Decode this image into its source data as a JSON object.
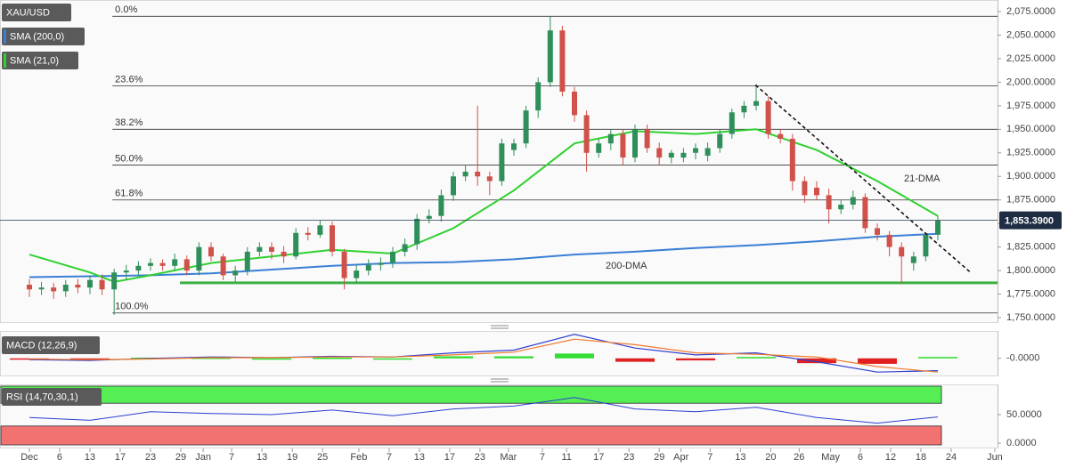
{
  "chart_data": [
    {
      "type": "candlestick",
      "symbol": "XAU/USD",
      "xlim": [
        -4.85,
        159.85
      ],
      "xticks": [
        {
          "value": 0,
          "label": "Dec"
        },
        {
          "value": 5,
          "label": "6"
        },
        {
          "value": 10,
          "label": "13"
        },
        {
          "value": 15,
          "label": "17"
        },
        {
          "value": 20,
          "label": "23"
        },
        {
          "value": 25,
          "label": "29"
        },
        {
          "value": 28.7,
          "label": "Jan"
        },
        {
          "value": 33.4,
          "label": "7"
        },
        {
          "value": 38.4,
          "label": "13"
        },
        {
          "value": 43.4,
          "label": "19"
        },
        {
          "value": 48.4,
          "label": "25"
        },
        {
          "value": 54.4,
          "label": "Feb"
        },
        {
          "value": 59.4,
          "label": "7"
        },
        {
          "value": 64.4,
          "label": "13"
        },
        {
          "value": 69.4,
          "label": "17"
        },
        {
          "value": 74.4,
          "label": "23"
        },
        {
          "value": 79.1,
          "label": "Mar"
        },
        {
          "value": 84.7,
          "label": "7"
        },
        {
          "value": 88.7,
          "label": "11"
        },
        {
          "value": 94,
          "label": "17"
        },
        {
          "value": 99,
          "label": "23"
        },
        {
          "value": 104,
          "label": "29"
        },
        {
          "value": 107.6,
          "label": "Apr"
        },
        {
          "value": 112.4,
          "label": "7"
        },
        {
          "value": 117.4,
          "label": "13"
        },
        {
          "value": 122.4,
          "label": "20"
        },
        {
          "value": 127.1,
          "label": "26"
        },
        {
          "value": 132.3,
          "label": "May"
        },
        {
          "value": 137.2,
          "label": "6"
        },
        {
          "value": 142.2,
          "label": "12"
        },
        {
          "value": 147.2,
          "label": "18"
        },
        {
          "value": 152.2,
          "label": "24"
        },
        {
          "value": 159.4,
          "label": "Jun"
        }
      ],
      "ylim": [
        1745.3,
        2087.3
      ],
      "yticks": [
        {
          "value": 2075,
          "label": "2,075.0000"
        },
        {
          "value": 2050,
          "label": "2,050.0000"
        },
        {
          "value": 2025,
          "label": "2,025.0000"
        },
        {
          "value": 2000,
          "label": "2,000.0000"
        },
        {
          "value": 1975,
          "label": "1,975.0000"
        },
        {
          "value": 1950,
          "label": "1,950.0000"
        },
        {
          "value": 1925,
          "label": "1,925.0000"
        },
        {
          "value": 1900,
          "label": "1,900.0000"
        },
        {
          "value": 1875,
          "label": "1,875.0000"
        },
        {
          "value": 1850,
          "label": "1,850.0000"
        },
        {
          "value": 1825,
          "label": "1,825.0000"
        },
        {
          "value": 1800,
          "label": "1,800.0000"
        },
        {
          "value": 1775,
          "label": "1,775.0000"
        },
        {
          "value": 1750,
          "label": "1,750.0000"
        }
      ],
      "candles": {
        "up_color": "#2f8f5b",
        "down_color": "#d0514a",
        "x": [
          0,
          2,
          4,
          6,
          8,
          10,
          12,
          14,
          16,
          18,
          20,
          22,
          24,
          26,
          28,
          30,
          32,
          34,
          36,
          38,
          40,
          42,
          44,
          46,
          48,
          50,
          52,
          54,
          56,
          58,
          60,
          62,
          64,
          66,
          68,
          70,
          72,
          74,
          76,
          78,
          80,
          82,
          84,
          86,
          88,
          90,
          92,
          94,
          96,
          98,
          100,
          102,
          104,
          106,
          108,
          110,
          112,
          114,
          116,
          118,
          120,
          122,
          124,
          126,
          128,
          130,
          132,
          134,
          136,
          138,
          140,
          142,
          144,
          146,
          148,
          150
        ],
        "open": [
          1785,
          1780,
          1782,
          1778,
          1785,
          1782,
          1790,
          1780,
          1798,
          1800,
          1805,
          1808,
          1805,
          1812,
          1800,
          1825,
          1815,
          1795,
          1800,
          1820,
          1825,
          1820,
          1815,
          1840,
          1838,
          1848,
          1820,
          1792,
          1800,
          1806,
          1808,
          1820,
          1828,
          1855,
          1858,
          1880,
          1900,
          1905,
          1900,
          1895,
          1928,
          1935,
          1970,
          2000,
          2055,
          1990,
          1965,
          1925,
          1935,
          1945,
          1920,
          1950,
          1930,
          1920,
          1920,
          1925,
          1922,
          1930,
          1945,
          1968,
          1975,
          1980,
          1945,
          1940,
          1895,
          1888,
          1880,
          1865,
          1870,
          1878,
          1845,
          1838,
          1825,
          1808,
          1815,
          1838
        ],
        "high": [
          1791,
          1788,
          1787,
          1790,
          1791,
          1795,
          1796,
          1802,
          1806,
          1810,
          1813,
          1812,
          1818,
          1816,
          1830,
          1830,
          1818,
          1805,
          1825,
          1830,
          1830,
          1826,
          1845,
          1846,
          1853,
          1852,
          1823,
          1806,
          1812,
          1814,
          1825,
          1834,
          1860,
          1865,
          1886,
          1905,
          1912,
          1975,
          1905,
          1940,
          1940,
          1975,
          2005,
          2070,
          2060,
          1995,
          1970,
          1940,
          1950,
          1950,
          1955,
          1955,
          1936,
          1928,
          1930,
          1935,
          1936,
          1950,
          1972,
          1980,
          1998,
          1985,
          1950,
          1945,
          1900,
          1895,
          1887,
          1875,
          1885,
          1882,
          1850,
          1842,
          1830,
          1820,
          1840,
          1858
        ],
        "low": [
          1772,
          1774,
          1770,
          1772,
          1776,
          1775,
          1774,
          1753,
          1790,
          1795,
          1800,
          1800,
          1800,
          1795,
          1795,
          1810,
          1790,
          1788,
          1795,
          1815,
          1812,
          1808,
          1812,
          1832,
          1835,
          1815,
          1780,
          1786,
          1795,
          1800,
          1803,
          1815,
          1822,
          1850,
          1852,
          1874,
          1895,
          1890,
          1880,
          1890,
          1922,
          1930,
          1962,
          1995,
          1985,
          1958,
          1905,
          1920,
          1928,
          1912,
          1915,
          1925,
          1912,
          1914,
          1915,
          1918,
          1916,
          1925,
          1940,
          1962,
          1970,
          1940,
          1935,
          1885,
          1872,
          1875,
          1850,
          1860,
          1865,
          1840,
          1832,
          1815,
          1786,
          1800,
          1810,
          1832
        ],
        "close": [
          1780,
          1782,
          1778,
          1785,
          1782,
          1790,
          1780,
          1798,
          1800,
          1805,
          1808,
          1805,
          1812,
          1800,
          1825,
          1815,
          1795,
          1800,
          1820,
          1825,
          1820,
          1815,
          1840,
          1838,
          1848,
          1820,
          1792,
          1800,
          1806,
          1808,
          1820,
          1828,
          1855,
          1858,
          1880,
          1900,
          1905,
          1900,
          1895,
          1935,
          1935,
          1970,
          2000,
          2055,
          1990,
          1965,
          1925,
          1935,
          1945,
          1920,
          1950,
          1930,
          1920,
          1925,
          1925,
          1930,
          1930,
          1945,
          1968,
          1975,
          1980,
          1945,
          1940,
          1895,
          1880,
          1880,
          1865,
          1870,
          1878,
          1845,
          1838,
          1825,
          1815,
          1815,
          1838,
          1853.39
        ]
      },
      "series": [
        {
          "name": "SMA (200,0)",
          "color": "#3a7fd5",
          "x": [
            0,
            10,
            20,
            30,
            40,
            50,
            60,
            70,
            80,
            90,
            100,
            110,
            120,
            130,
            140,
            150
          ],
          "values": [
            1793,
            1794,
            1795,
            1797,
            1801,
            1805,
            1808,
            1809,
            1812,
            1817,
            1820,
            1824,
            1827,
            1831,
            1836,
            1839
          ]
        },
        {
          "name": "SMA (21,0)",
          "color": "#2fd12f",
          "x": [
            0,
            10,
            14,
            20,
            30,
            40,
            50,
            60,
            70,
            80,
            90,
            100,
            110,
            120,
            130,
            140,
            150
          ],
          "values": [
            1817,
            1798,
            1788,
            1795,
            1808,
            1815,
            1822,
            1818,
            1845,
            1885,
            1935,
            1948,
            1945,
            1950,
            1928,
            1895,
            1858
          ]
        }
      ],
      "fib_levels": [
        {
          "value": 2070,
          "label": "0.0%"
        },
        {
          "value": 1996,
          "label": "23.6%"
        },
        {
          "value": 1950,
          "label": "38.2%"
        },
        {
          "value": 1912,
          "label": "50.0%"
        },
        {
          "value": 1875,
          "label": "61.8%"
        },
        {
          "value": 1755,
          "label": "100.0%"
        }
      ],
      "support": {
        "value": 1787,
        "color": "#3cb043"
      },
      "trendline": {
        "x": [
          119.9,
          155.4
        ],
        "values": [
          1997,
          1798
        ]
      },
      "current_price": {
        "value": 1853.39,
        "label": "1,853.3900"
      },
      "annotations": [
        {
          "text": "21-DMA",
          "color": "#2fd12f"
        },
        {
          "text": "200-DMA",
          "color": "#3a7fd5"
        }
      ]
    },
    {
      "type": "macd",
      "title": "MACD (12,26,9)",
      "ylim": [
        -25,
        40
      ],
      "yticks": [
        {
          "value": 0,
          "label": "-0.0000"
        }
      ],
      "x": [
        0,
        10,
        20,
        30,
        40,
        50,
        60,
        70,
        80,
        90,
        100,
        110,
        120,
        130,
        140,
        150
      ],
      "series": [
        {
          "color": "#2f3fd0",
          "values": [
            -2,
            -3,
            0,
            2,
            1,
            3,
            2,
            8,
            12,
            35,
            15,
            5,
            8,
            -5,
            -20,
            -18
          ]
        },
        {
          "color": "#f07a2a",
          "values": [
            -1,
            -2,
            -1,
            1,
            1,
            2,
            2,
            5,
            9,
            28,
            20,
            8,
            6,
            2,
            -12,
            -20
          ]
        }
      ],
      "histogram": {
        "up_color": "#33dd33",
        "down_color": "#e02020",
        "values": [
          -1,
          -1,
          1,
          1,
          0,
          1,
          0,
          3,
          3,
          7,
          -5,
          -3,
          2,
          -7,
          -8,
          2
        ]
      }
    },
    {
      "type": "rsi",
      "title": "RSI (14,70,30,1)",
      "ylim": [
        -7.8,
        101.6
      ],
      "yticks": [
        {
          "value": 50,
          "label": "50.0000"
        },
        {
          "value": 0,
          "label": "0.0000"
        }
      ],
      "overbought": 70,
      "oversold": 30,
      "overbought_color": "#55ee55",
      "oversold_color": "#f27272",
      "x": [
        0,
        10,
        20,
        30,
        40,
        50,
        60,
        70,
        80,
        90,
        100,
        110,
        120,
        130,
        140,
        150
      ],
      "color": "#2f3fd0",
      "values": [
        45,
        40,
        55,
        52,
        50,
        58,
        48,
        60,
        65,
        80,
        60,
        55,
        63,
        45,
        35,
        46
      ]
    }
  ]
}
